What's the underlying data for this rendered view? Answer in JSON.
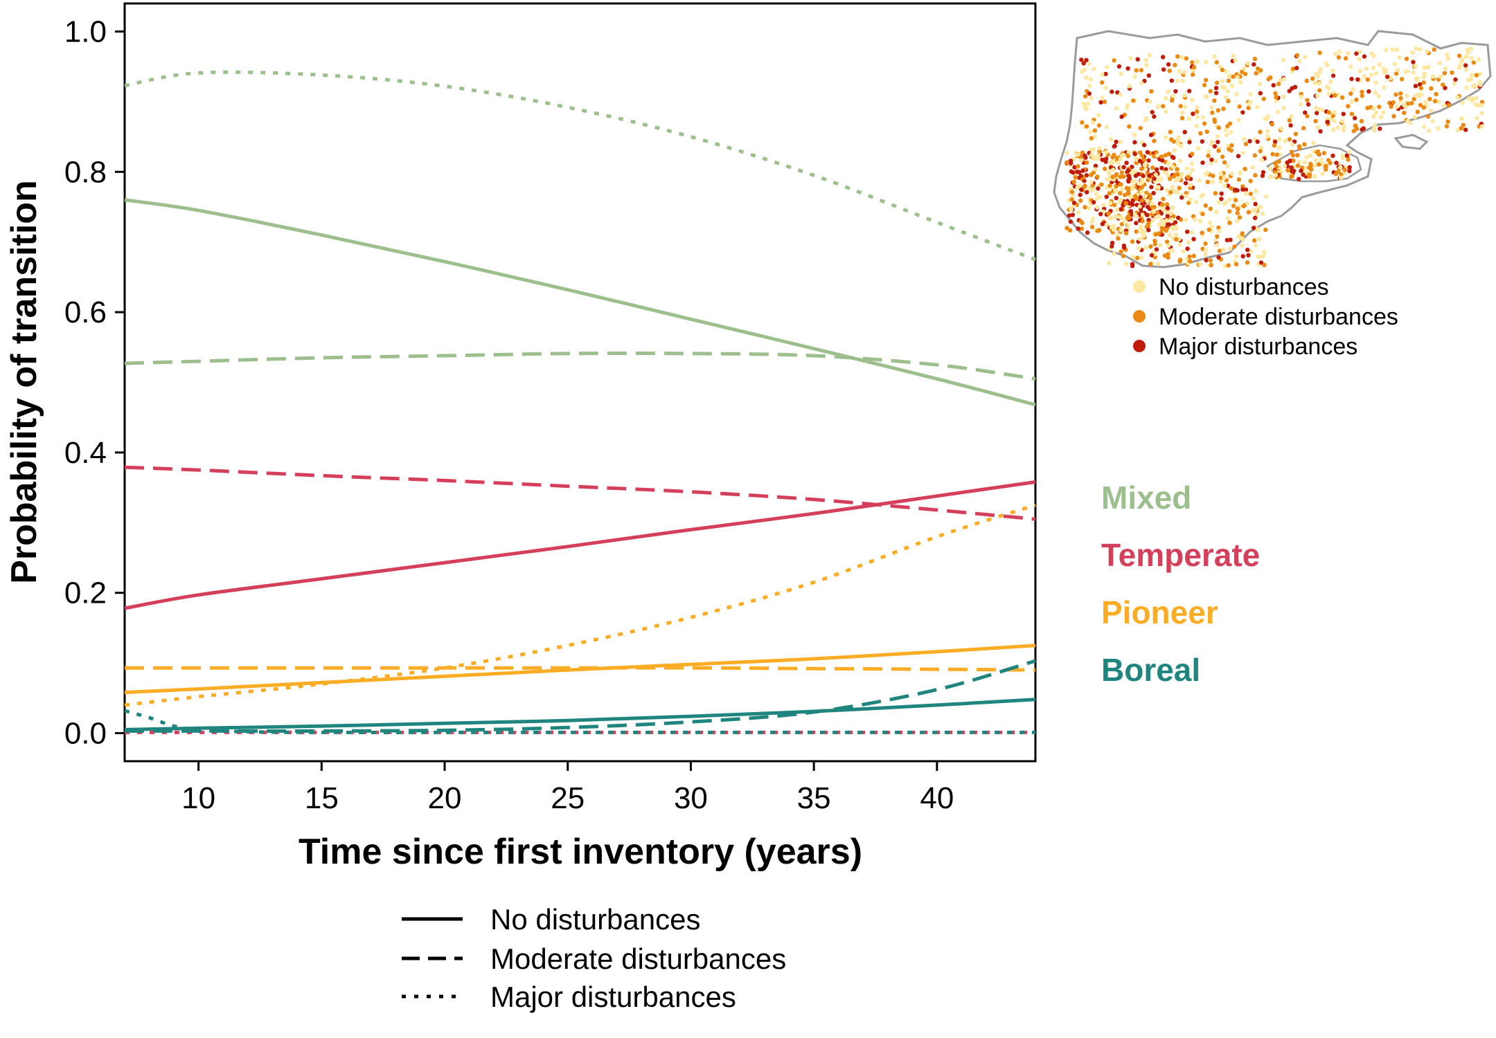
{
  "chart_data": {
    "type": "line",
    "title": "",
    "xlabel": "Time since first inventory (years)",
    "ylabel": "Probability of transition",
    "xlim": [
      7,
      44
    ],
    "ylim": [
      -0.04,
      1.04
    ],
    "x_ticks": [
      10,
      15,
      20,
      25,
      30,
      35,
      40
    ],
    "y_ticks": [
      0.0,
      0.2,
      0.4,
      0.6,
      0.8,
      1.0
    ],
    "x_tick_labels": [
      "10",
      "15",
      "20",
      "25",
      "30",
      "35",
      "40"
    ],
    "y_tick_labels": [
      "0.0",
      "0.2",
      "0.4",
      "0.6",
      "0.8",
      "1.0"
    ],
    "grid": false,
    "class_labels": [
      {
        "name": "Mixed",
        "color": "#9dbf8e"
      },
      {
        "name": "Temperate",
        "color": "#d4405b"
      },
      {
        "name": "Pioneer",
        "color": "#f9ac24"
      },
      {
        "name": "Boreal",
        "color": "#1f857e"
      }
    ],
    "linestyle_legend": [
      {
        "label": "No disturbances",
        "style": "solid"
      },
      {
        "label": "Moderate disturbances",
        "style": "dashed"
      },
      {
        "label": "Major disturbances",
        "style": "dotted"
      }
    ],
    "series": [
      {
        "forest": "Mixed",
        "disturbance": "none",
        "color": "#9dbf8e",
        "style": "solid",
        "x": [
          7,
          10,
          15,
          20,
          25,
          30,
          35,
          40,
          44
        ],
        "y": [
          0.76,
          0.745,
          0.71,
          0.672,
          0.632,
          0.59,
          0.548,
          0.505,
          0.468
        ]
      },
      {
        "forest": "Mixed",
        "disturbance": "moderate",
        "color": "#9dbf8e",
        "style": "dashed",
        "x": [
          7,
          10,
          15,
          20,
          25,
          30,
          35,
          40,
          44
        ],
        "y": [
          0.527,
          0.53,
          0.535,
          0.538,
          0.541,
          0.541,
          0.538,
          0.525,
          0.505
        ]
      },
      {
        "forest": "Mixed",
        "disturbance": "major",
        "color": "#9dbf8e",
        "style": "dotted",
        "x": [
          7,
          10,
          15,
          20,
          25,
          30,
          35,
          40,
          44
        ],
        "y": [
          0.923,
          0.941,
          0.938,
          0.922,
          0.892,
          0.85,
          0.795,
          0.728,
          0.675
        ]
      },
      {
        "forest": "Temperate",
        "disturbance": "none",
        "color": "#d4405b",
        "style": "solid",
        "x": [
          7,
          10,
          15,
          20,
          25,
          30,
          35,
          40,
          44
        ],
        "y": [
          0.178,
          0.197,
          0.22,
          0.243,
          0.266,
          0.29,
          0.313,
          0.338,
          0.358
        ]
      },
      {
        "forest": "Temperate",
        "disturbance": "moderate",
        "color": "#d4405b",
        "style": "dashed",
        "x": [
          7,
          10,
          15,
          20,
          25,
          30,
          35,
          40,
          44
        ],
        "y": [
          0.379,
          0.375,
          0.367,
          0.36,
          0.352,
          0.344,
          0.333,
          0.318,
          0.305
        ]
      },
      {
        "forest": "Temperate",
        "disturbance": "major",
        "color": "#d4405b",
        "style": "dotted",
        "x": [
          7,
          10,
          15,
          20,
          25,
          30,
          35,
          40,
          44
        ],
        "y": [
          0.001,
          0.001,
          0.001,
          0.001,
          0.001,
          0.001,
          0.001,
          0.001,
          0.001
        ]
      },
      {
        "forest": "Pioneer",
        "disturbance": "none",
        "color": "#f9ac24",
        "style": "solid",
        "x": [
          7,
          10,
          15,
          20,
          25,
          30,
          35,
          40,
          44
        ],
        "y": [
          0.058,
          0.063,
          0.072,
          0.081,
          0.09,
          0.098,
          0.106,
          0.116,
          0.125
        ]
      },
      {
        "forest": "Pioneer",
        "disturbance": "moderate",
        "color": "#f9ac24",
        "style": "dashed",
        "x": [
          7,
          10,
          15,
          20,
          25,
          30,
          35,
          40,
          44
        ],
        "y": [
          0.093,
          0.093,
          0.093,
          0.093,
          0.093,
          0.093,
          0.092,
          0.091,
          0.09
        ]
      },
      {
        "forest": "Pioneer",
        "disturbance": "major",
        "color": "#f9ac24",
        "style": "dotted",
        "x": [
          7,
          10,
          15,
          20,
          25,
          30,
          35,
          40,
          44
        ],
        "y": [
          0.04,
          0.052,
          0.07,
          0.093,
          0.125,
          0.165,
          0.215,
          0.28,
          0.325
        ]
      },
      {
        "forest": "Boreal",
        "disturbance": "none",
        "color": "#1f857e",
        "style": "solid",
        "x": [
          7,
          10,
          15,
          20,
          25,
          30,
          35,
          40,
          44
        ],
        "y": [
          0.005,
          0.007,
          0.01,
          0.014,
          0.018,
          0.024,
          0.031,
          0.04,
          0.048
        ]
      },
      {
        "forest": "Boreal",
        "disturbance": "moderate",
        "color": "#1f857e",
        "style": "dashed",
        "x": [
          7,
          10,
          15,
          20,
          25,
          30,
          35,
          40,
          44
        ],
        "y": [
          0.003,
          0.003,
          0.003,
          0.004,
          0.008,
          0.016,
          0.03,
          0.062,
          0.103
        ]
      },
      {
        "forest": "Boreal",
        "disturbance": "major",
        "color": "#1f857e",
        "style": "dotted",
        "x": [
          7,
          8,
          9,
          10,
          12,
          15,
          20,
          25,
          30,
          35,
          40,
          44
        ],
        "y": [
          0.032,
          0.022,
          0.01,
          0.005,
          0.002,
          0.001,
          0.001,
          0.001,
          0.001,
          0.001,
          0.001,
          0.001
        ]
      }
    ]
  },
  "map_inset": {
    "legend": [
      {
        "label": "No disturbances",
        "color": "#fde8a3"
      },
      {
        "label": "Moderate disturbances",
        "color": "#ea8a12"
      },
      {
        "label": "Major disturbances",
        "color": "#c01c0c"
      }
    ]
  }
}
